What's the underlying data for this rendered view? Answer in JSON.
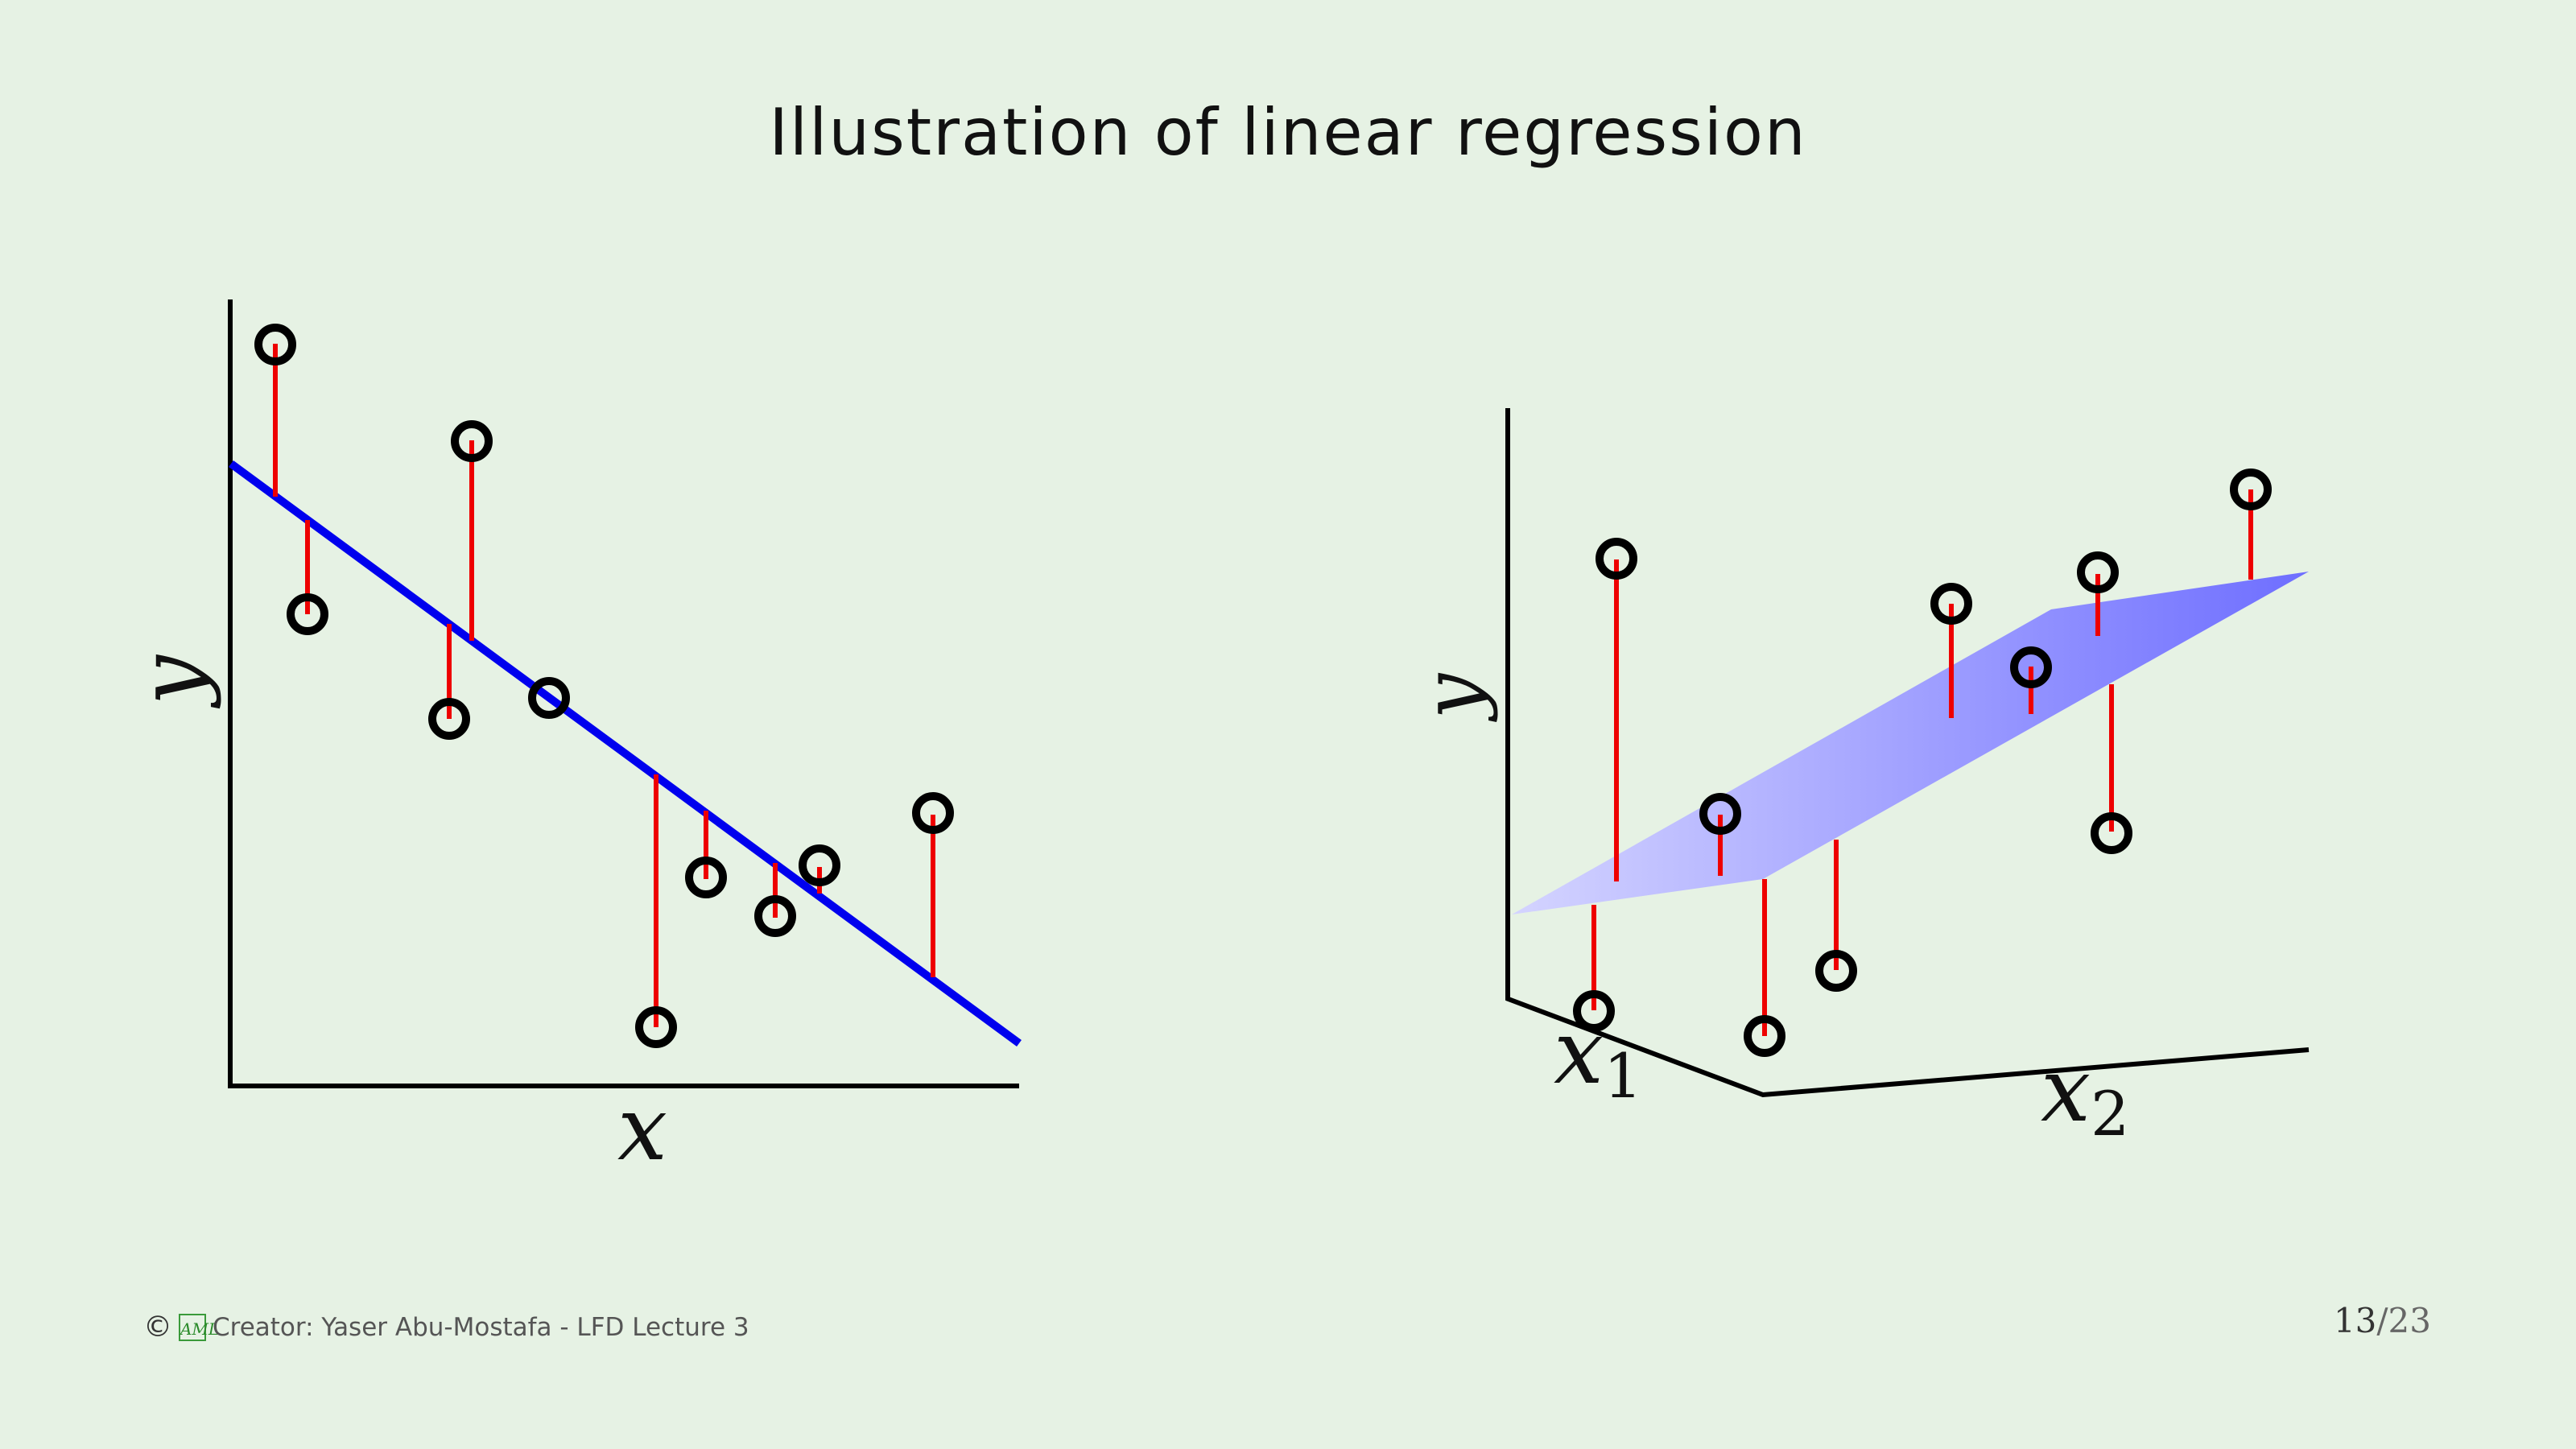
{
  "slide": {
    "title": "Illustration of linear regression",
    "footer": {
      "copyright_symbol": "©",
      "logo_text": "AML",
      "credit": "Creator: Yaser Abu-Mostafa - LFD Lecture 3"
    },
    "page": {
      "current": "13",
      "separator": "/",
      "total": "23"
    }
  },
  "left_plot": {
    "xlabel": "x",
    "ylabel": "y",
    "colors": {
      "axis": "#000000",
      "fit_line": "#0000ee",
      "residual": "#ee0000",
      "point": "#000000"
    }
  },
  "right_plot": {
    "x1label": "x",
    "x1sub": "1",
    "x2label": "x",
    "x2sub": "2",
    "ylabel": "y",
    "colors": {
      "axis": "#000000",
      "plane": "#7777ff",
      "residual": "#ee0000",
      "point": "#000000"
    }
  }
}
